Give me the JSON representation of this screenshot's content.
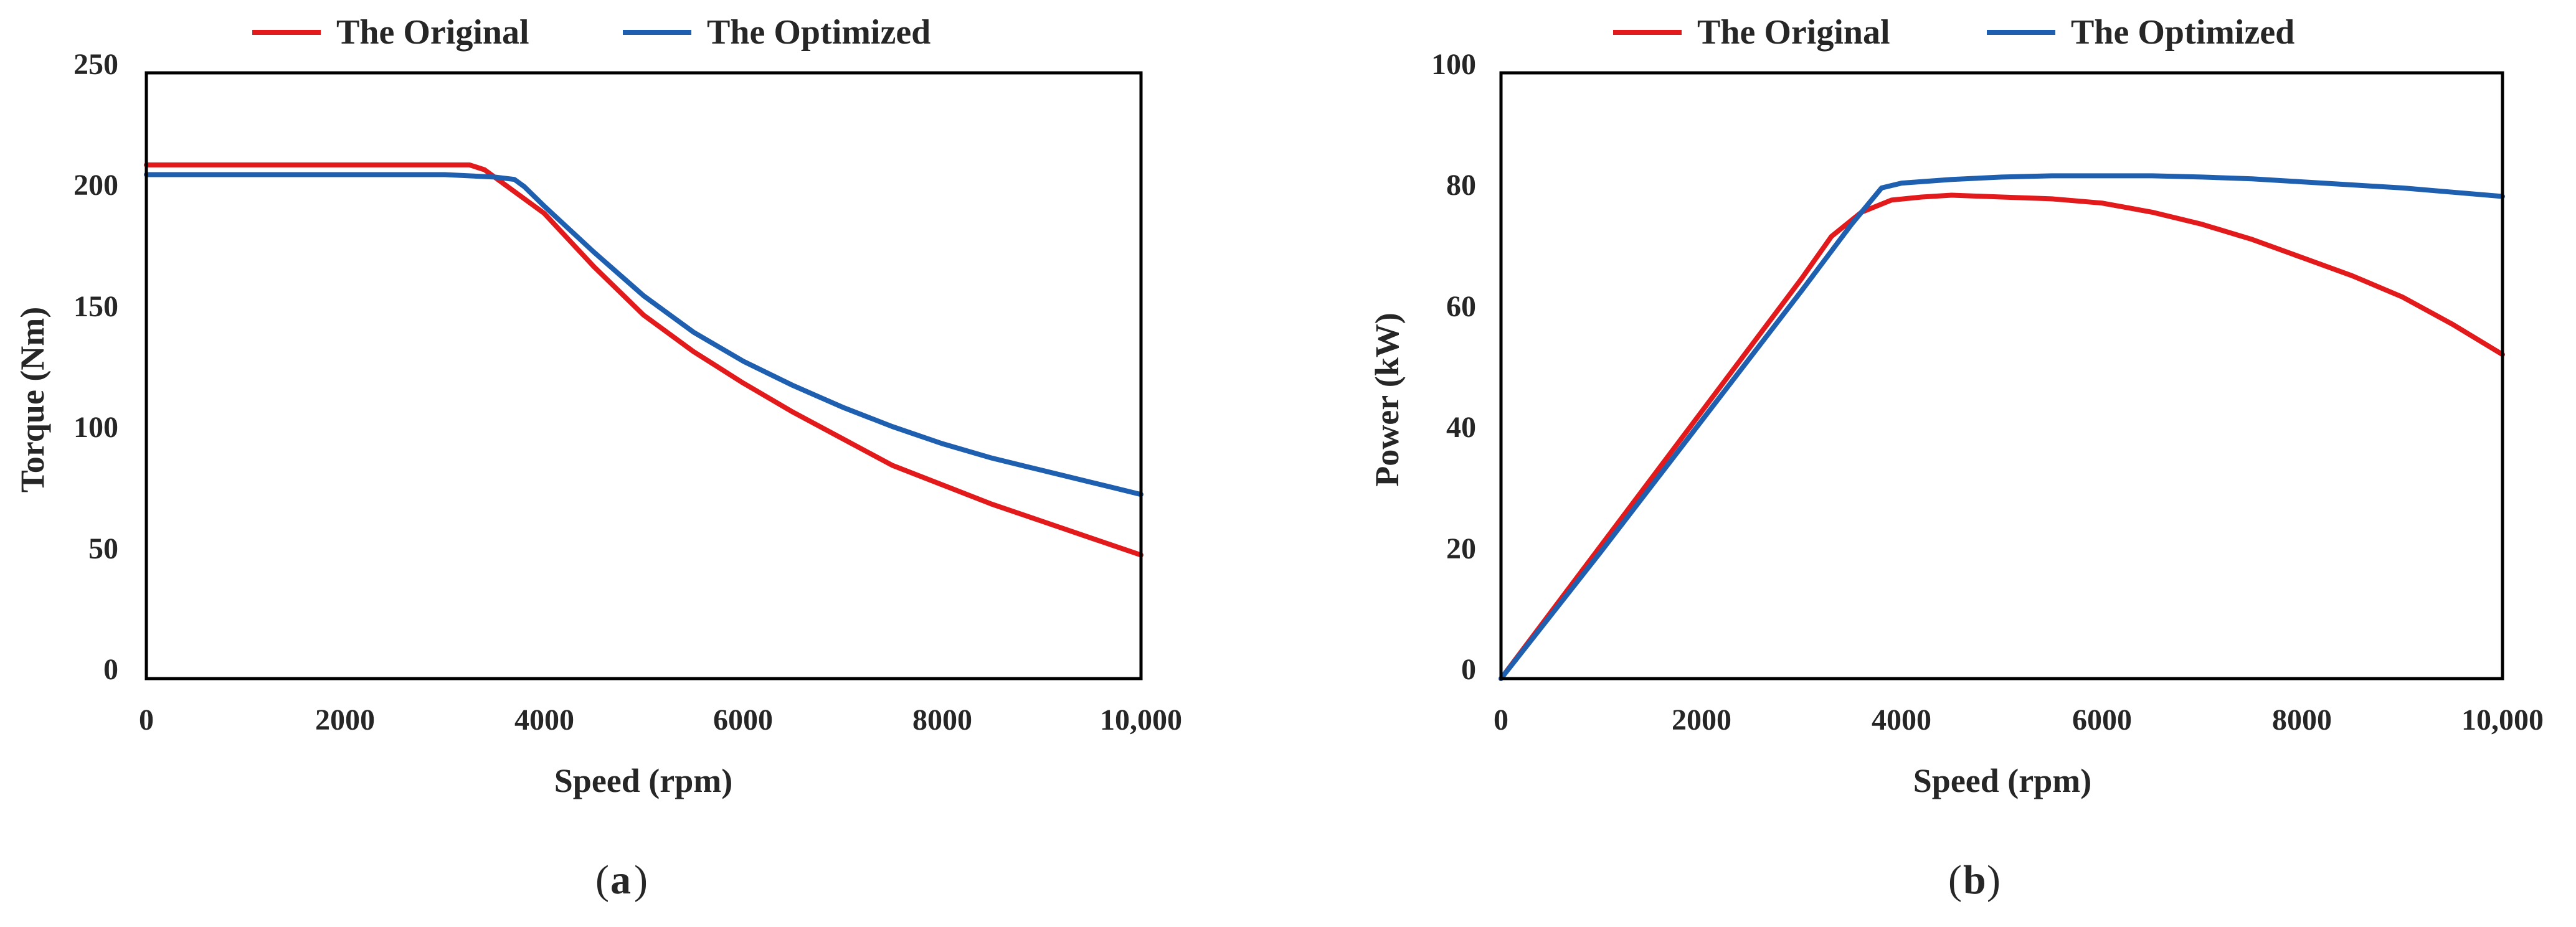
{
  "chart_data": [
    {
      "type": "line",
      "panel": "a",
      "caption_letter": "a",
      "xlabel": "Speed (rpm)",
      "ylabel": "Torque (Nm)",
      "xlim": [
        0,
        10000
      ],
      "ylim": [
        0,
        250
      ],
      "xticks": [
        0,
        2000,
        4000,
        6000,
        8000,
        10000
      ],
      "xtick_labels": [
        "0",
        "2000",
        "4000",
        "6000",
        "8000",
        "10,000"
      ],
      "yticks": [
        0,
        50,
        100,
        150,
        200,
        250
      ],
      "ytick_labels": [
        "0",
        "50",
        "100",
        "150",
        "200",
        "250"
      ],
      "grid": false,
      "legend_position": "top-center",
      "series": [
        {
          "name": "The Original",
          "color": "#e31a1c",
          "x": [
            0,
            1000,
            2000,
            3000,
            3250,
            3400,
            3600,
            4000,
            4500,
            5000,
            5500,
            6000,
            6500,
            7000,
            7500,
            8000,
            8500,
            9000,
            9500,
            10000
          ],
          "y": [
            212,
            212,
            212,
            212,
            212,
            210,
            204,
            192,
            170,
            150,
            135,
            122,
            110,
            99,
            88,
            80,
            72,
            65,
            58,
            51
          ]
        },
        {
          "name": "The Optimized",
          "color": "#1f5fb0",
          "x": [
            0,
            1000,
            2000,
            3000,
            3500,
            3700,
            3800,
            4000,
            4500,
            5000,
            5500,
            6000,
            6500,
            7000,
            7500,
            8000,
            8500,
            9000,
            9500,
            10000
          ],
          "y": [
            208,
            208,
            208,
            208,
            207,
            206,
            203,
            195,
            176,
            158,
            143,
            131,
            121,
            112,
            104,
            97,
            91,
            86,
            81,
            76
          ]
        }
      ]
    },
    {
      "type": "line",
      "panel": "b",
      "caption_letter": "b",
      "xlabel": "Speed (rpm)",
      "ylabel": "Power (kW)",
      "xlim": [
        0,
        10000
      ],
      "ylim": [
        0,
        100
      ],
      "xticks": [
        0,
        2000,
        4000,
        6000,
        8000,
        10000
      ],
      "xtick_labels": [
        "0",
        "2000",
        "4000",
        "6000",
        "8000",
        "10,000"
      ],
      "yticks": [
        0,
        20,
        40,
        60,
        80,
        100
      ],
      "ytick_labels": [
        "0",
        "20",
        "40",
        "60",
        "80",
        "100"
      ],
      "grid": false,
      "legend_position": "top-center",
      "series": [
        {
          "name": "The Original",
          "color": "#e31a1c",
          "x": [
            0,
            1000,
            2000,
            3000,
            3300,
            3600,
            3900,
            4200,
            4500,
            5000,
            5500,
            6000,
            6500,
            7000,
            7500,
            8000,
            8500,
            9000,
            9500,
            10000
          ],
          "y": [
            0,
            22,
            44,
            66,
            73,
            77,
            79,
            79.5,
            79.8,
            79.5,
            79.2,
            78.5,
            77,
            75,
            72.5,
            69.5,
            66.5,
            63,
            58.5,
            53.5
          ]
        },
        {
          "name": "The Optimized",
          "color": "#1f5fb0",
          "x": [
            0,
            1000,
            2000,
            3000,
            3500,
            3800,
            4000,
            4500,
            5000,
            5500,
            6000,
            6500,
            7000,
            7500,
            8000,
            8500,
            9000,
            9500,
            10000
          ],
          "y": [
            0,
            21,
            42.5,
            64,
            75,
            81,
            81.8,
            82.4,
            82.8,
            83,
            83,
            83,
            82.8,
            82.5,
            82,
            81.5,
            81,
            80.3,
            79.6
          ]
        }
      ]
    }
  ]
}
